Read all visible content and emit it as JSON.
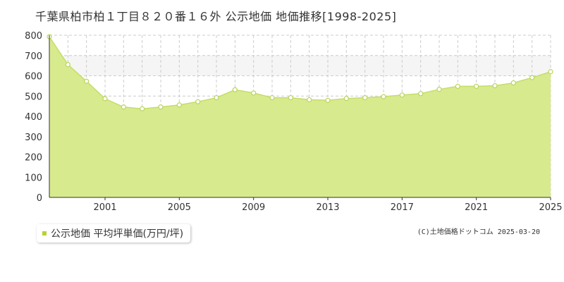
{
  "chart_data": {
    "type": "area",
    "title": "千葉県柏市柏１丁目８２０番１６外 公示地価 地価推移[1998-2025]",
    "series": [
      {
        "name": "公示地価 平均坪単価(万円/坪)",
        "x": [
          1998,
          1999,
          2000,
          2001,
          2002,
          2003,
          2004,
          2005,
          2006,
          2007,
          2008,
          2009,
          2010,
          2011,
          2012,
          2013,
          2014,
          2015,
          2016,
          2017,
          2018,
          2019,
          2020,
          2021,
          2022,
          2023,
          2024,
          2025
        ],
        "values": [
          793,
          655,
          573,
          487,
          446,
          437,
          446,
          456,
          472,
          492,
          531,
          515,
          492,
          492,
          482,
          479,
          488,
          492,
          497,
          505,
          512,
          533,
          548,
          548,
          551,
          565,
          591,
          620
        ]
      }
    ],
    "x_ticks": [
      "2001",
      "2005",
      "2009",
      "2013",
      "2017",
      "2021",
      "2025"
    ],
    "y_ticks": [
      "0",
      "100",
      "200",
      "300",
      "400",
      "500",
      "600",
      "700",
      "800"
    ],
    "xlim": [
      1998,
      2025
    ],
    "ylim": [
      0,
      800
    ],
    "grid": true,
    "legend_position": "bottom-left",
    "colors": {
      "fill": "#d8ea8e",
      "line": "#c5dd6a",
      "marker_stroke": "#b9d55a",
      "grid": "#cccccc",
      "highlight_band": "#f5f5f5",
      "legend_marker": "#b5d334"
    }
  },
  "source_text": "(C)土地価格ドットコム 2025-03-20"
}
